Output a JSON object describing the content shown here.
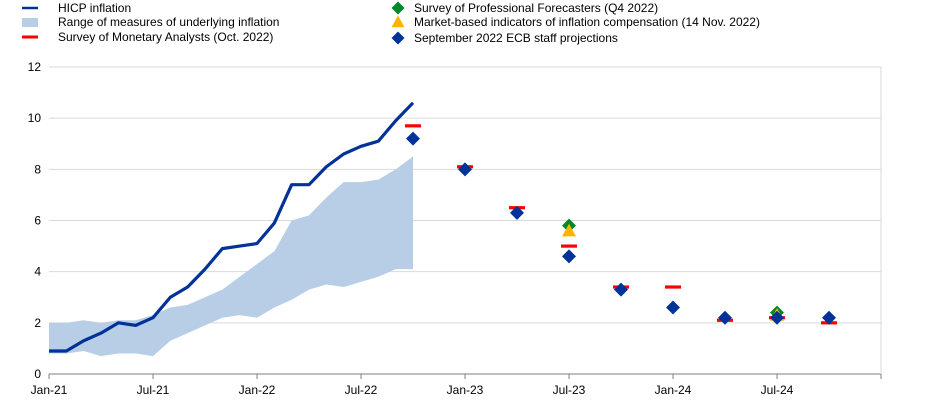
{
  "chart_data": {
    "type": "line",
    "title": "",
    "xlabel": "",
    "ylabel": "",
    "ylim": [
      0,
      12
    ],
    "yticks": [
      0,
      2,
      4,
      6,
      8,
      10,
      12
    ],
    "xlim": [
      "2021-01",
      "2025-01"
    ],
    "xticks": [
      {
        "date": "2021-01",
        "label": "Jan-21"
      },
      {
        "date": "2021-07",
        "label": "Jul-21"
      },
      {
        "date": "2022-01",
        "label": "Jan-22"
      },
      {
        "date": "2022-07",
        "label": "Jul-22"
      },
      {
        "date": "2023-01",
        "label": "Jan-23"
      },
      {
        "date": "2023-07",
        "label": "Jul-23"
      },
      {
        "date": "2024-01",
        "label": "Jan-24"
      },
      {
        "date": "2024-07",
        "label": "Jul-24"
      }
    ],
    "grid": "horizontal",
    "legend_position": "top",
    "series": [
      {
        "name": "HICP inflation",
        "kind": "line",
        "color": "#003299",
        "points": [
          [
            "2021-01",
            0.9
          ],
          [
            "2021-02",
            0.9
          ],
          [
            "2021-03",
            1.3
          ],
          [
            "2021-04",
            1.6
          ],
          [
            "2021-05",
            2.0
          ],
          [
            "2021-06",
            1.9
          ],
          [
            "2021-07",
            2.2
          ],
          [
            "2021-08",
            3.0
          ],
          [
            "2021-09",
            3.4
          ],
          [
            "2021-10",
            4.1
          ],
          [
            "2021-11",
            4.9
          ],
          [
            "2021-12",
            5.0
          ],
          [
            "2022-01",
            5.1
          ],
          [
            "2022-02",
            5.9
          ],
          [
            "2022-03",
            7.4
          ],
          [
            "2022-04",
            7.4
          ],
          [
            "2022-05",
            8.1
          ],
          [
            "2022-06",
            8.6
          ],
          [
            "2022-07",
            8.9
          ],
          [
            "2022-08",
            9.1
          ],
          [
            "2022-09",
            9.9
          ],
          [
            "2022-10",
            10.6
          ]
        ]
      },
      {
        "name": "Range of measures of underlying inflation",
        "kind": "area",
        "color": "#b8cde6",
        "points": [
          [
            "2021-01",
            0.8,
            2.0
          ],
          [
            "2021-02",
            0.8,
            2.0
          ],
          [
            "2021-03",
            0.9,
            2.1
          ],
          [
            "2021-04",
            0.7,
            2.0
          ],
          [
            "2021-05",
            0.8,
            2.1
          ],
          [
            "2021-06",
            0.8,
            2.1
          ],
          [
            "2021-07",
            0.7,
            2.3
          ],
          [
            "2021-08",
            1.3,
            2.6
          ],
          [
            "2021-09",
            1.6,
            2.7
          ],
          [
            "2021-10",
            1.9,
            3.0
          ],
          [
            "2021-11",
            2.2,
            3.3
          ],
          [
            "2021-12",
            2.3,
            3.8
          ],
          [
            "2022-01",
            2.2,
            4.3
          ],
          [
            "2022-02",
            2.6,
            4.8
          ],
          [
            "2022-03",
            2.9,
            6.0
          ],
          [
            "2022-04",
            3.3,
            6.2
          ],
          [
            "2022-05",
            3.5,
            6.9
          ],
          [
            "2022-06",
            3.4,
            7.5
          ],
          [
            "2022-07",
            3.6,
            7.5
          ],
          [
            "2022-08",
            3.8,
            7.6
          ],
          [
            "2022-09",
            4.1,
            8.0
          ],
          [
            "2022-10",
            4.1,
            8.5
          ]
        ]
      },
      {
        "name": "Survey of Monetary Analysts (Oct. 2022)",
        "kind": "dash",
        "color": "#ff0000",
        "points": [
          [
            "2022-10",
            9.7
          ],
          [
            "2023-01",
            8.1
          ],
          [
            "2023-04",
            6.5
          ],
          [
            "2023-07",
            5.0
          ],
          [
            "2023-10",
            3.4
          ],
          [
            "2024-01",
            3.4
          ],
          [
            "2024-04",
            2.1
          ],
          [
            "2024-07",
            2.2
          ],
          [
            "2024-10",
            2.0
          ]
        ]
      },
      {
        "name": "Survey of Professional Forecasters (Q4 2022)",
        "kind": "marker",
        "marker": "diamond",
        "color": "#00882b",
        "points": [
          [
            "2023-07",
            5.8
          ],
          [
            "2024-07",
            2.4
          ]
        ]
      },
      {
        "name": "Market-based indicators of inflation compensation (14 Nov. 2022)",
        "kind": "marker",
        "marker": "triangle",
        "color": "#ffb400",
        "points": [
          [
            "2023-07",
            5.6
          ],
          [
            "2024-07",
            2.3
          ]
        ]
      },
      {
        "name": "September 2022 ECB staff projections",
        "kind": "marker",
        "marker": "diamond",
        "color": "#003299",
        "points": [
          [
            "2022-10",
            9.2
          ],
          [
            "2023-01",
            8.0
          ],
          [
            "2023-04",
            6.3
          ],
          [
            "2023-07",
            4.6
          ],
          [
            "2023-10",
            3.3
          ],
          [
            "2024-01",
            2.6
          ],
          [
            "2024-04",
            2.2
          ],
          [
            "2024-07",
            2.2
          ],
          [
            "2024-10",
            2.2
          ]
        ]
      }
    ]
  }
}
